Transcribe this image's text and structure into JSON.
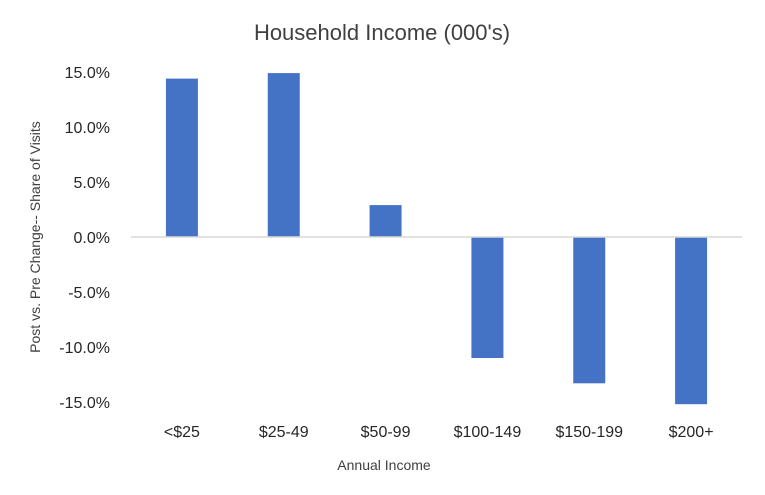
{
  "chart_data": {
    "type": "bar",
    "title": "Household Income (000's)",
    "xlabel": "Annual Income",
    "ylabel": "Post vs. Pre Change-- Share of Visits",
    "categories": [
      "<$25",
      "$25-49",
      "$50-99",
      "$100-149",
      "$150-199",
      "$200+"
    ],
    "series": [
      {
        "values": [
          14.4,
          14.9,
          2.9,
          -11.0,
          -13.3,
          -15.2
        ]
      }
    ],
    "ylim": [
      -15,
      15
    ],
    "yticks": [
      15,
      10,
      5,
      0,
      -5,
      -10,
      -15
    ],
    "ytick_labels": [
      "15.0%",
      "10.0%",
      "5.0%",
      "0.0%",
      "-5.0%",
      "-10.0%",
      "-15.0%"
    ],
    "grid": false,
    "legend": "none",
    "colors": {
      "bar": "#4472C4",
      "axis": "#D9D9D9"
    }
  }
}
